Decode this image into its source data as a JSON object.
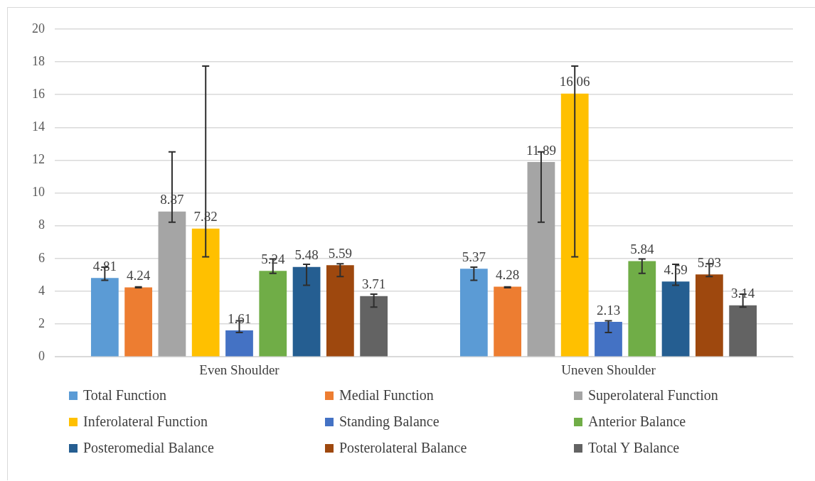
{
  "chart_data": {
    "type": "bar",
    "categories": [
      "Even Shoulder",
      "Uneven Shoulder"
    ],
    "series": [
      {
        "name": "Total Function",
        "color": "#5b9bd5",
        "values": [
          4.81,
          5.37
        ],
        "errors": [
          [
            4.67,
            5.47
          ],
          [
            4.67,
            5.47
          ]
        ]
      },
      {
        "name": "Medial Function",
        "color": "#ed7d31",
        "values": [
          4.24,
          4.28
        ],
        "errors": [
          [
            4.22,
            4.27
          ],
          [
            4.22,
            4.27
          ]
        ]
      },
      {
        "name": "Superolateral Function",
        "color": "#a5a5a5",
        "values": [
          8.87,
          11.89
        ],
        "errors": [
          [
            8.22,
            12.51
          ],
          [
            8.22,
            12.51
          ]
        ]
      },
      {
        "name": "Inferolateral Function",
        "color": "#ffc000",
        "values": [
          7.82,
          16.06
        ],
        "errors": [
          [
            6.1,
            17.75
          ],
          [
            6.1,
            17.75
          ]
        ]
      },
      {
        "name": "Standing Balance",
        "color": "#4472c4",
        "values": [
          1.61,
          2.13
        ],
        "errors": [
          [
            1.48,
            2.2
          ],
          [
            1.48,
            2.2
          ]
        ]
      },
      {
        "name": "Anterior Balance",
        "color": "#70ad47",
        "values": [
          5.24,
          5.84
        ],
        "errors": [
          [
            5.09,
            5.97
          ],
          [
            5.09,
            5.97
          ]
        ]
      },
      {
        "name": "Posteromedial Balance",
        "color": "#255e91",
        "values": [
          5.48,
          4.59
        ],
        "errors": [
          [
            4.37,
            5.65
          ],
          [
            4.37,
            5.65
          ]
        ]
      },
      {
        "name": "Posterolateral Balance",
        "color": "#9e480e",
        "values": [
          5.59,
          5.03
        ],
        "errors": [
          [
            4.9,
            5.68
          ],
          [
            4.9,
            5.68
          ]
        ]
      },
      {
        "name": "Total Y Balance",
        "color": "#636363",
        "values": [
          3.71,
          3.14
        ],
        "errors": [
          [
            3.03,
            3.82
          ],
          [
            3.03,
            3.82
          ]
        ]
      }
    ],
    "ylim": [
      0,
      20
    ],
    "yticks": [
      0,
      2,
      4,
      6,
      8,
      10,
      12,
      14,
      16,
      18,
      20
    ],
    "grid": "y",
    "legend": "bottom",
    "data_labels": true
  }
}
